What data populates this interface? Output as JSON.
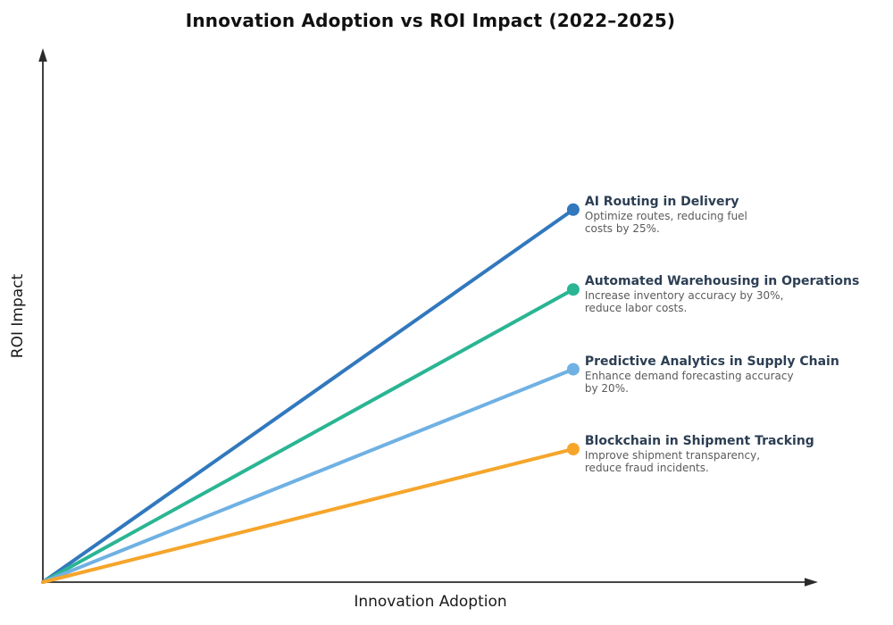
{
  "title": "Innovation Adoption vs ROI Impact (2022–2025)",
  "chart_data": {
    "type": "line",
    "title": "Innovation Adoption vs ROI Impact (2022–2025)",
    "xlabel": "Innovation Adoption",
    "ylabel": "ROI Impact",
    "xlim": [
      0,
      1
    ],
    "ylim": [
      0,
      1
    ],
    "grid": false,
    "tick_labels": "none (conceptual axes with arrowheads, no numeric ticks)",
    "legend_position": "inline annotations at right end of each line",
    "series": [
      {
        "name": "AI Routing in Delivery",
        "description": [
          "Optimize routes, reducing fuel",
          "costs by 25%."
        ],
        "color": "#3178be",
        "x": [
          0,
          0.685
        ],
        "y": [
          0,
          0.7
        ]
      },
      {
        "name": "Automated Warehousing in Operations",
        "description": [
          "Increase inventory accuracy by 30%,",
          "reduce labor costs."
        ],
        "color": "#2ab593",
        "x": [
          0,
          0.685
        ],
        "y": [
          0,
          0.55
        ]
      },
      {
        "name": "Predictive Analytics in Supply Chain",
        "description": [
          "Enhance demand forecasting accuracy",
          "by 20%."
        ],
        "color": "#6fb1e3",
        "x": [
          0,
          0.685
        ],
        "y": [
          0,
          0.4
        ]
      },
      {
        "name": "Blockchain in Shipment Tracking",
        "description": [
          "Improve shipment transparency,",
          "reduce fraud incidents."
        ],
        "color": "#f6a52b",
        "x": [
          0,
          0.685
        ],
        "y": [
          0,
          0.25
        ]
      }
    ]
  },
  "style": {
    "background": "#ffffff",
    "axis_color": "#2b2b2b",
    "title_color": "#111111",
    "annotation_title_color": "#2c3e53",
    "annotation_desc_color": "#5a5a5a",
    "line_width": 4,
    "dot_radius": 7
  }
}
